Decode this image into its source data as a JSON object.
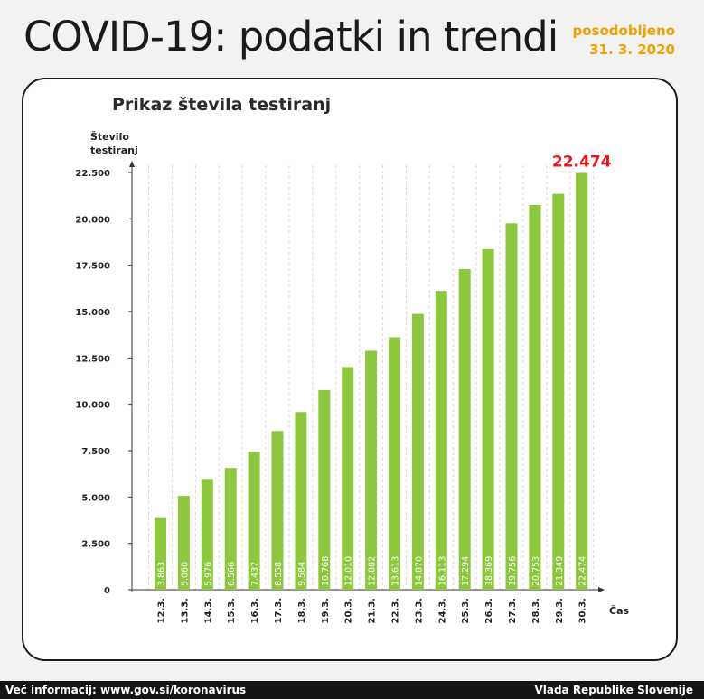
{
  "header": {
    "title": "COVID-19: podatki in trendi",
    "updated_label": "posodobljeno",
    "updated_date": "31. 3. 2020"
  },
  "footer": {
    "info": "Več informacij: www.gov.si/koronavirus",
    "org": "Vlada Republike Slovenije"
  },
  "chart_data": {
    "type": "bar",
    "title": "Prikaz števila testiranj",
    "ylabel": "Število testiranj",
    "xlabel": "Čas",
    "ylim": [
      0,
      22500
    ],
    "yticks": [
      0,
      2500,
      5000,
      7500,
      10000,
      12500,
      15000,
      17500,
      20000,
      22500
    ],
    "ytick_labels": [
      "0",
      "2.500",
      "5.000",
      "7.500",
      "10.000",
      "12.500",
      "15.000",
      "17.500",
      "20.000",
      "22.500"
    ],
    "categories": [
      "12.3.",
      "13.3.",
      "14.3.",
      "15.3.",
      "16.3.",
      "17.3.",
      "18.3.",
      "19.3.",
      "20.3.",
      "21.3.",
      "22.3.",
      "23.3.",
      "24.3.",
      "25.3.",
      "26.3.",
      "27.3.",
      "28.3.",
      "29.3.",
      "30.3."
    ],
    "values": [
      3863,
      5060,
      5976,
      6566,
      7437,
      8558,
      9584,
      10768,
      12010,
      12882,
      13613,
      14870,
      16113,
      17294,
      18369,
      19756,
      20753,
      21349,
      22474
    ],
    "value_labels": [
      "3.863",
      "5.060",
      "5.976",
      "6.566",
      "7.437",
      "8.558",
      "9.584",
      "10.768",
      "12.010",
      "12.882",
      "13.613",
      "14.870",
      "16.113",
      "17.294",
      "18.369",
      "19.756",
      "20.753",
      "21.349",
      "22.474"
    ],
    "highlight_label": "22.474",
    "bar_color": "#8dc63f",
    "highlight_color": "#e8141b",
    "grid": "vertical dashed"
  }
}
